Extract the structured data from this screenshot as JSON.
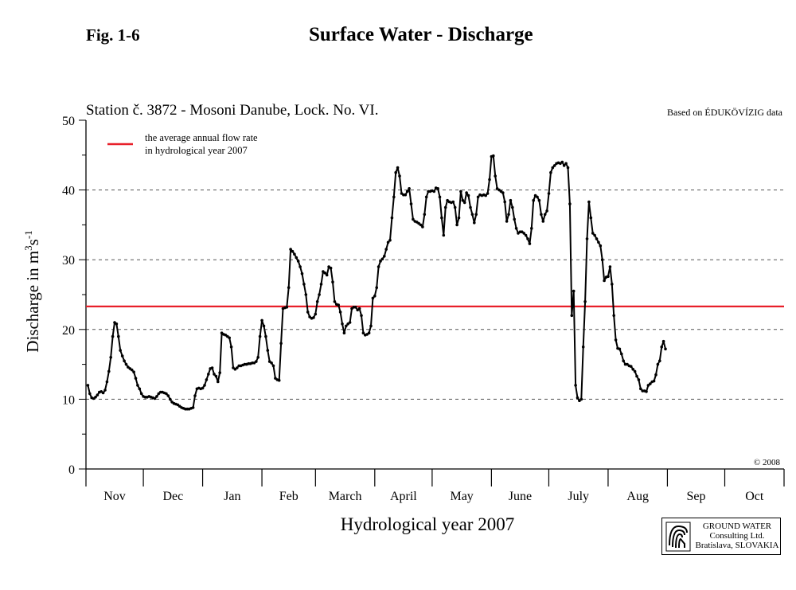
{
  "figure": {
    "label": "Fig. 1-6",
    "title": "Surface Water - Discharge"
  },
  "chart_data": {
    "type": "line",
    "station": "Station č. 3872 - Mosoni Danube, Lock. No. VI.",
    "source_note": "Based on ÉDUKÖVÍZIG data",
    "copyright": "© 2008",
    "ylabel_main": "Discharge in m",
    "ylabel_sup1": "3",
    "ylabel_mid": "s",
    "ylabel_sup2": "-1",
    "xlabel": "Hydrological year 2007",
    "ylim": [
      0,
      50
    ],
    "yticks": [
      0,
      10,
      20,
      30,
      40,
      50
    ],
    "grid": "horizontal dashed at 10, 20, 30, 40",
    "xlim_days": [
      0,
      365
    ],
    "months": [
      "Nov",
      "Dec",
      "Jan",
      "Feb",
      "March",
      "April",
      "May",
      "June",
      "July",
      "Aug",
      "Sep",
      "Oct"
    ],
    "month_lengths": [
      30,
      31,
      31,
      28,
      31,
      30,
      31,
      30,
      31,
      31,
      30,
      31
    ],
    "average_line": {
      "label_line1": "the average annual flow rate",
      "label_line2": "in hydrological year 2007",
      "value": 23.3,
      "color": "#e8202a"
    },
    "series": [
      {
        "color": "#000000",
        "points": [
          [
            1,
            12
          ],
          [
            2,
            10.8
          ],
          [
            3,
            10.2
          ],
          [
            4,
            10.1
          ],
          [
            5,
            10.3
          ],
          [
            6,
            10.6
          ],
          [
            7,
            11.0
          ],
          [
            8,
            11.1
          ],
          [
            9,
            10.9
          ],
          [
            10,
            11.3
          ],
          [
            11,
            12.5
          ],
          [
            12,
            14.0
          ],
          [
            13,
            16.0
          ],
          [
            14,
            19.0
          ],
          [
            15,
            21.0
          ],
          [
            16,
            20.8
          ],
          [
            17,
            19.0
          ],
          [
            18,
            17.0
          ],
          [
            19,
            16.2
          ],
          [
            20,
            15.5
          ],
          [
            21,
            15.0
          ],
          [
            22,
            14.6
          ],
          [
            23,
            14.4
          ],
          [
            24,
            14.2
          ],
          [
            25,
            13.9
          ],
          [
            26,
            13.0
          ],
          [
            27,
            12.0
          ],
          [
            28,
            11.5
          ],
          [
            29,
            10.8
          ],
          [
            30,
            10.4
          ],
          [
            31,
            10.3
          ],
          [
            32,
            10.3
          ],
          [
            33,
            10.4
          ],
          [
            34,
            10.3
          ],
          [
            35,
            10.2
          ],
          [
            36,
            10.1
          ],
          [
            37,
            10.4
          ],
          [
            38,
            10.8
          ],
          [
            39,
            11.0
          ],
          [
            40,
            11.0
          ],
          [
            41,
            10.9
          ],
          [
            42,
            10.8
          ],
          [
            43,
            10.5
          ],
          [
            44,
            10.0
          ],
          [
            45,
            9.6
          ],
          [
            46,
            9.4
          ],
          [
            47,
            9.3
          ],
          [
            48,
            9.2
          ],
          [
            49,
            9.0
          ],
          [
            50,
            8.8
          ],
          [
            51,
            8.7
          ],
          [
            52,
            8.6
          ],
          [
            53,
            8.6
          ],
          [
            54,
            8.6
          ],
          [
            55,
            8.7
          ],
          [
            56,
            8.8
          ],
          [
            57,
            10.5
          ],
          [
            58,
            11.5
          ],
          [
            59,
            11.6
          ],
          [
            60,
            11.5
          ],
          [
            61,
            11.6
          ],
          [
            62,
            12.0
          ],
          [
            63,
            12.8
          ],
          [
            64,
            13.6
          ],
          [
            65,
            14.4
          ],
          [
            66,
            14.5
          ],
          [
            67,
            13.6
          ],
          [
            68,
            13.3
          ],
          [
            69,
            12.5
          ],
          [
            70,
            13.8
          ],
          [
            71,
            19.5
          ],
          [
            72,
            19.3
          ],
          [
            73,
            19.2
          ],
          [
            74,
            19.0
          ],
          [
            75,
            18.8
          ],
          [
            76,
            17.5
          ],
          [
            77,
            14.5
          ],
          [
            78,
            14.3
          ],
          [
            79,
            14.5
          ],
          [
            80,
            14.8
          ],
          [
            81,
            14.8
          ],
          [
            82,
            14.9
          ],
          [
            83,
            15.0
          ],
          [
            84,
            15.0
          ],
          [
            85,
            15.1
          ],
          [
            86,
            15.1
          ],
          [
            87,
            15.2
          ],
          [
            88,
            15.2
          ],
          [
            89,
            15.4
          ],
          [
            90,
            16.0
          ],
          [
            91,
            19.0
          ],
          [
            92,
            21.3
          ],
          [
            93,
            20.5
          ],
          [
            94,
            19.0
          ],
          [
            95,
            17.0
          ],
          [
            96,
            15.4
          ],
          [
            97,
            15.2
          ],
          [
            98,
            14.8
          ],
          [
            99,
            13.0
          ],
          [
            100,
            12.8
          ],
          [
            101,
            12.7
          ],
          [
            102,
            18.0
          ],
          [
            103,
            23.0
          ],
          [
            104,
            23.1
          ],
          [
            105,
            23.2
          ],
          [
            106,
            26.0
          ],
          [
            107,
            31.5
          ],
          [
            108,
            31.2
          ],
          [
            109,
            30.8
          ],
          [
            110,
            30.3
          ],
          [
            111,
            29.8
          ],
          [
            112,
            29.0
          ],
          [
            113,
            28.0
          ],
          [
            114,
            26.5
          ],
          [
            115,
            25.0
          ],
          [
            116,
            22.5
          ],
          [
            117,
            21.8
          ],
          [
            118,
            21.6
          ],
          [
            119,
            21.7
          ],
          [
            120,
            22.2
          ],
          [
            121,
            24.0
          ],
          [
            122,
            25.0
          ],
          [
            123,
            26.5
          ],
          [
            124,
            28.3
          ],
          [
            125,
            28.1
          ],
          [
            126,
            27.8
          ],
          [
            127,
            29.0
          ],
          [
            128,
            28.8
          ],
          [
            129,
            26.8
          ],
          [
            130,
            24.0
          ],
          [
            131,
            23.6
          ],
          [
            132,
            23.5
          ],
          [
            133,
            22.5
          ],
          [
            134,
            20.8
          ],
          [
            135,
            19.5
          ],
          [
            136,
            20.5
          ],
          [
            137,
            20.8
          ],
          [
            138,
            21.0
          ],
          [
            139,
            23.0
          ],
          [
            140,
            23.2
          ],
          [
            141,
            23.2
          ],
          [
            142,
            22.8
          ],
          [
            143,
            23.0
          ],
          [
            144,
            22.0
          ],
          [
            145,
            19.5
          ],
          [
            146,
            19.2
          ],
          [
            147,
            19.3
          ],
          [
            148,
            19.5
          ],
          [
            149,
            20.5
          ],
          [
            150,
            24.5
          ],
          [
            151,
            24.8
          ],
          [
            152,
            26.0
          ],
          [
            153,
            29.0
          ],
          [
            154,
            29.8
          ],
          [
            155,
            30.1
          ],
          [
            156,
            30.5
          ],
          [
            157,
            31.5
          ],
          [
            158,
            32.5
          ],
          [
            159,
            32.8
          ],
          [
            160,
            36.0
          ],
          [
            161,
            39.0
          ],
          [
            162,
            42.5
          ],
          [
            163,
            43.2
          ],
          [
            164,
            42.0
          ],
          [
            165,
            39.5
          ],
          [
            166,
            39.3
          ],
          [
            167,
            39.3
          ],
          [
            168,
            39.8
          ],
          [
            169,
            40.2
          ],
          [
            170,
            38.0
          ],
          [
            171,
            35.8
          ],
          [
            172,
            35.5
          ],
          [
            173,
            35.4
          ],
          [
            174,
            35.2
          ],
          [
            175,
            35.0
          ],
          [
            176,
            34.7
          ],
          [
            177,
            36.5
          ],
          [
            178,
            39.0
          ],
          [
            179,
            39.8
          ],
          [
            180,
            39.8
          ],
          [
            181,
            39.9
          ],
          [
            182,
            39.8
          ],
          [
            183,
            40.3
          ],
          [
            184,
            40.2
          ],
          [
            185,
            39.0
          ],
          [
            186,
            36.0
          ],
          [
            187,
            33.5
          ],
          [
            188,
            37.5
          ],
          [
            189,
            38.5
          ],
          [
            190,
            38.3
          ],
          [
            191,
            38.2
          ],
          [
            192,
            38.3
          ],
          [
            193,
            37.5
          ],
          [
            194,
            35.0
          ],
          [
            195,
            36.0
          ],
          [
            196,
            39.8
          ],
          [
            197,
            38.5
          ],
          [
            198,
            38.2
          ],
          [
            199,
            39.6
          ],
          [
            200,
            39.2
          ],
          [
            201,
            37.5
          ],
          [
            202,
            36.5
          ],
          [
            203,
            35.3
          ],
          [
            204,
            36.5
          ],
          [
            205,
            39.0
          ],
          [
            206,
            39.3
          ],
          [
            207,
            39.2
          ],
          [
            208,
            39.3
          ],
          [
            209,
            39.2
          ],
          [
            210,
            39.5
          ],
          [
            211,
            41.5
          ],
          [
            212,
            44.8
          ],
          [
            213,
            44.9
          ],
          [
            214,
            42.0
          ],
          [
            215,
            40.2
          ],
          [
            216,
            40.0
          ],
          [
            217,
            39.8
          ],
          [
            218,
            39.6
          ],
          [
            219,
            38.3
          ],
          [
            220,
            35.5
          ],
          [
            221,
            36.5
          ],
          [
            222,
            38.5
          ],
          [
            223,
            37.5
          ],
          [
            224,
            35.8
          ],
          [
            225,
            34.5
          ],
          [
            226,
            33.8
          ],
          [
            227,
            34.0
          ],
          [
            228,
            34.0
          ],
          [
            229,
            33.8
          ],
          [
            230,
            33.5
          ],
          [
            231,
            33.0
          ],
          [
            232,
            32.3
          ],
          [
            233,
            34.5
          ],
          [
            234,
            38.5
          ],
          [
            235,
            39.2
          ],
          [
            236,
            39.0
          ],
          [
            237,
            38.5
          ],
          [
            238,
            36.5
          ],
          [
            239,
            35.5
          ],
          [
            240,
            36.5
          ],
          [
            241,
            37.0
          ],
          [
            242,
            39.5
          ],
          [
            243,
            42.5
          ],
          [
            244,
            43.2
          ],
          [
            245,
            43.5
          ],
          [
            246,
            43.8
          ],
          [
            247,
            43.9
          ],
          [
            248,
            43.8
          ],
          [
            249,
            44.0
          ],
          [
            250,
            43.5
          ],
          [
            251,
            43.8
          ],
          [
            252,
            43.2
          ],
          [
            253,
            38.0
          ],
          [
            254,
            22.0
          ],
          [
            255,
            25.5
          ],
          [
            256,
            12.0
          ],
          [
            257,
            10.2
          ],
          [
            258,
            9.8
          ],
          [
            259,
            10.0
          ],
          [
            260,
            17.5
          ],
          [
            261,
            24.0
          ],
          [
            262,
            33.0
          ],
          [
            263,
            38.3
          ],
          [
            264,
            36.0
          ],
          [
            265,
            33.8
          ],
          [
            266,
            33.5
          ],
          [
            267,
            33.0
          ],
          [
            268,
            32.5
          ],
          [
            269,
            32.0
          ],
          [
            270,
            30.0
          ],
          [
            271,
            27.0
          ],
          [
            272,
            27.5
          ],
          [
            273,
            27.6
          ],
          [
            274,
            29.0
          ],
          [
            275,
            26.5
          ],
          [
            276,
            22.0
          ],
          [
            277,
            18.5
          ],
          [
            278,
            17.3
          ],
          [
            279,
            17.2
          ],
          [
            280,
            16.5
          ],
          [
            281,
            15.5
          ],
          [
            282,
            15.0
          ],
          [
            283,
            15.0
          ],
          [
            284,
            14.8
          ],
          [
            285,
            14.7
          ],
          [
            286,
            14.3
          ],
          [
            287,
            14.0
          ],
          [
            288,
            13.3
          ],
          [
            289,
            12.8
          ],
          [
            290,
            11.5
          ],
          [
            291,
            11.2
          ],
          [
            292,
            11.2
          ],
          [
            293,
            11.1
          ],
          [
            294,
            12.0
          ],
          [
            295,
            12.2
          ],
          [
            296,
            12.5
          ],
          [
            297,
            12.6
          ],
          [
            298,
            13.5
          ],
          [
            299,
            15.0
          ],
          [
            300,
            15.5
          ],
          [
            301,
            17.5
          ],
          [
            302,
            18.3
          ],
          [
            303,
            17.2
          ]
        ]
      }
    ]
  },
  "logo": {
    "line1": "GROUND WATER",
    "line2": "Consulting Ltd.",
    "line3": "Bratislava, SLOVAKIA"
  }
}
